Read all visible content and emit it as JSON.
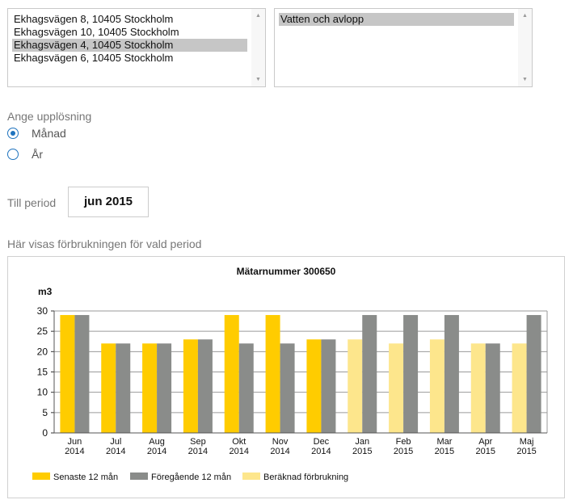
{
  "addresses": {
    "items": [
      "Ekhagsvägen 8, 10405 Stockholm",
      "Ekhagsvägen 10, 10405 Stockholm",
      "Ekhagsvägen 4, 10405 Stockholm",
      "Ekhagsvägen 6, 10405 Stockholm"
    ],
    "selected_index": 2
  },
  "services": {
    "items": [
      "Vatten och avlopp"
    ],
    "selected_index": 0
  },
  "resolution": {
    "label": "Ange upplösning",
    "options": [
      {
        "label": "Månad",
        "checked": true
      },
      {
        "label": "År",
        "checked": false
      }
    ]
  },
  "period": {
    "label": "Till period",
    "value": "jun 2015"
  },
  "usage_label": "Här visas förbrukningen för vald period",
  "chart_data": {
    "type": "bar",
    "title": "Mätarnummer 300650",
    "ylabel": "m3",
    "ylim": [
      0,
      30
    ],
    "yticks": [
      0,
      5,
      10,
      15,
      20,
      25,
      30
    ],
    "grid": true,
    "legend_position": "bottom-left",
    "categories": [
      "Jun\n2014",
      "Jul\n2014",
      "Aug\n2014",
      "Sep\n2014",
      "Okt\n2014",
      "Nov\n2014",
      "Dec\n2014",
      "Jan\n2015",
      "Feb\n2015",
      "Mar\n2015",
      "Apr\n2015",
      "Maj\n2015"
    ],
    "series": [
      {
        "name": "Senaste 12 mån",
        "color": "#ffcc00",
        "values": [
          29,
          22,
          22,
          23,
          29,
          29,
          23,
          null,
          null,
          null,
          null,
          null
        ]
      },
      {
        "name": "Föregående 12 mån",
        "color": "#8a8c8a",
        "values": [
          29,
          22,
          22,
          23,
          22,
          22,
          23,
          29,
          29,
          29,
          22,
          29
        ]
      },
      {
        "name": "Beräknad förbrukning",
        "color": "#fde68c",
        "values": [
          null,
          null,
          null,
          null,
          null,
          null,
          null,
          23,
          22,
          23,
          22,
          22
        ]
      }
    ]
  }
}
